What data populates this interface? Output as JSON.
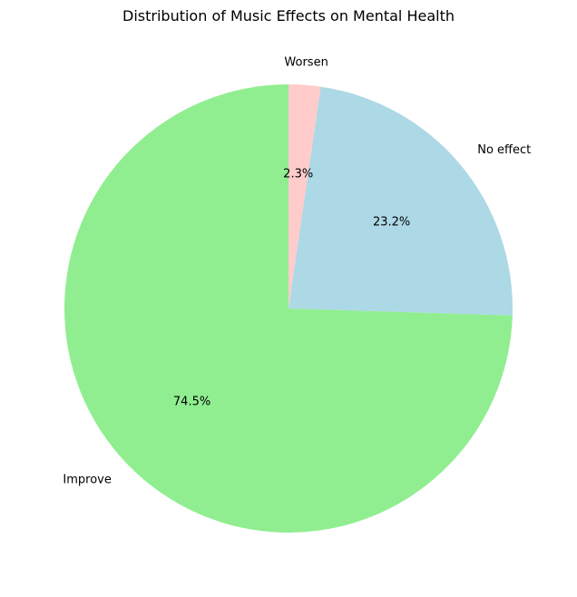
{
  "chart_data": {
    "type": "pie",
    "title": "Distribution of Music Effects on Mental Health",
    "start_angle_deg": 90,
    "direction": "clockwise",
    "slices": [
      {
        "label": "Worsen",
        "value": 2.3,
        "pct_label": "2.3%",
        "color": "#ffcccb"
      },
      {
        "label": "No effect",
        "value": 23.2,
        "pct_label": "23.2%",
        "color": "#add8e6"
      },
      {
        "label": "Improve",
        "value": 74.5,
        "pct_label": "74.5%",
        "color": "#90ee90"
      }
    ],
    "legend": "none"
  }
}
